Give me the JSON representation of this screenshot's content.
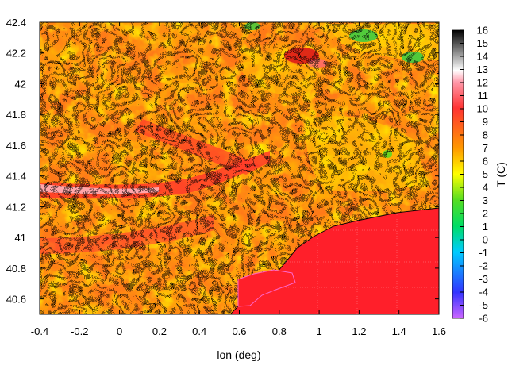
{
  "chart_data": {
    "type": "heatmap",
    "title": "",
    "xlabel": "lon (deg)",
    "ylabel": "",
    "colorbar_label": "T (C)",
    "xlim": [
      -0.4,
      1.6
    ],
    "ylim": [
      40.5,
      42.4
    ],
    "x_ticks": [
      "-0.4",
      "-0.2",
      "0",
      "0.2",
      "0.4",
      "0.6",
      "0.8",
      "1",
      "1.2",
      "1.4",
      "1.6"
    ],
    "y_ticks": [
      "40.6",
      "40.8",
      "41",
      "41.2",
      "41.4",
      "41.6",
      "41.8",
      "42",
      "42.2",
      "42.4"
    ],
    "colorbar_range": [
      -6,
      16
    ],
    "colorbar_ticks": [
      "16",
      "15",
      "14",
      "13",
      "12",
      "11",
      "10",
      "9",
      "8",
      "7",
      "6",
      "5",
      "4",
      "3",
      "2",
      "1",
      "0",
      "-1",
      "-2",
      "-3",
      "-4",
      "-5",
      "-6"
    ],
    "palette": [
      "#cc66ff",
      "#3333ff",
      "#00ccff",
      "#00dd66",
      "#55dd22",
      "#ffff00",
      "#ff9900",
      "#ff3333",
      "#ff99aa",
      "#ffffff",
      "#000000"
    ],
    "notes_visible": "Temperature field with black contour lines; sea region (lower right) is uniform red ~10 C; warmest strip near lat 41.3 at the left edge; greenish spots near the top right."
  }
}
